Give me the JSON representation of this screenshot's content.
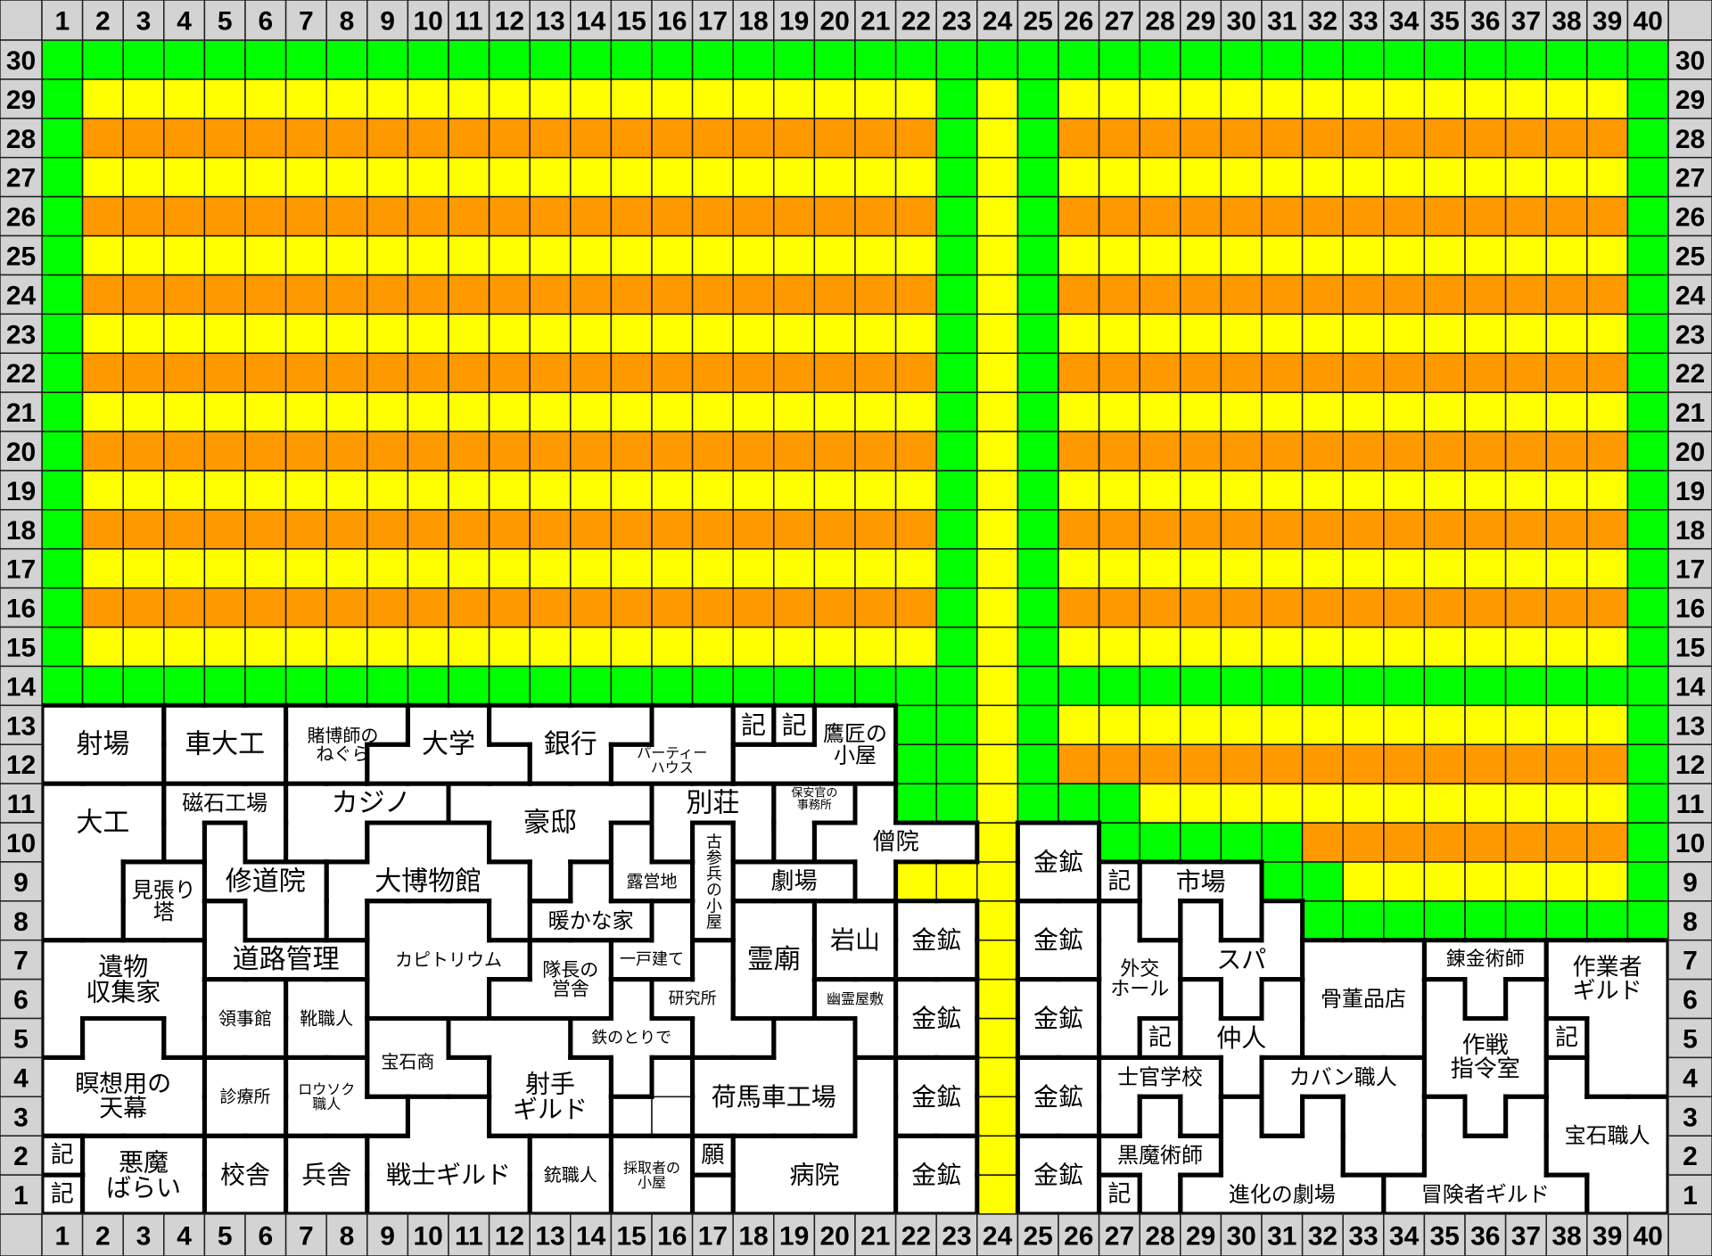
{
  "columns": [
    "1",
    "2",
    "3",
    "4",
    "5",
    "6",
    "7",
    "8",
    "9",
    "10",
    "11",
    "12",
    "13",
    "14",
    "15",
    "16",
    "17",
    "18",
    "19",
    "20",
    "21",
    "22",
    "23",
    "24",
    "25",
    "26",
    "27",
    "28",
    "29",
    "30",
    "31",
    "32",
    "33",
    "34",
    "35",
    "36",
    "37",
    "38",
    "39",
    "40"
  ],
  "rows": [
    "30",
    "29",
    "28",
    "27",
    "26",
    "25",
    "24",
    "23",
    "22",
    "21",
    "20",
    "19",
    "18",
    "17",
    "16",
    "15",
    "14",
    "13",
    "12",
    "11",
    "10",
    "9",
    "8",
    "7",
    "6",
    "5",
    "4",
    "3",
    "2",
    "1"
  ],
  "colors": {
    "green": "#00ff00",
    "yellow": "#ffff00",
    "orange": "#ff9900",
    "header": "#d3d3d3",
    "building": "#ffffff"
  },
  "buildings": [
    {
      "id": "shajo",
      "lines": [
        "射場"
      ],
      "cells": "13:1-3,12:1-3"
    },
    {
      "id": "kurumadaiku",
      "lines": [
        "車大工"
      ],
      "cells": "13:4-6,12:4-6"
    },
    {
      "id": "tobakushi",
      "lines": [
        "賭博師の",
        "ねぐら"
      ],
      "cells": "13:7-9,12:7-8"
    },
    {
      "id": "daigaku",
      "lines": [
        "大学"
      ],
      "cells": "13:10-11,12:9-12"
    },
    {
      "id": "ginko",
      "lines": [
        "銀行"
      ],
      "cells": "13:12-15,12:13-14"
    },
    {
      "id": "party",
      "lines": [
        "パーティー",
        "ハウス"
      ],
      "cells": "13:16-17,12:15-17"
    },
    {
      "id": "ki-a",
      "lines": [
        "記"
      ],
      "cells": "13:18"
    },
    {
      "id": "ki-b",
      "lines": [
        "記"
      ],
      "cells": "13:19"
    },
    {
      "id": "takasho",
      "lines": [
        "鷹匠の",
        "小屋"
      ],
      "cells": "13:20-21,12:18-21"
    },
    {
      "id": "daiku",
      "lines": [
        "大工"
      ],
      "cells": "11:1-3,10:1-3,9:1-2,8:1-2"
    },
    {
      "id": "jishaku",
      "lines": [
        "磁石工場"
      ],
      "cells": "11:4-6,10:4,10:6"
    },
    {
      "id": "casino",
      "lines": [
        "カジノ"
      ],
      "cells": "11:7-10,10:7-8"
    },
    {
      "id": "gotei",
      "lines": [
        "豪邸"
      ],
      "cells": "11:11-15,10:12-14,9:13"
    },
    {
      "id": "besso",
      "lines": [
        "別荘"
      ],
      "cells": "11:16-18,10:16,10:18"
    },
    {
      "id": "hoankan",
      "lines": [
        "保安官の",
        "事務所"
      ],
      "cells": "11:19-20,10:19"
    },
    {
      "id": "soin",
      "lines": [
        "僧院"
      ],
      "cells": "11:21,10:20-23,9:21"
    },
    {
      "id": "mihari",
      "lines": [
        "見張り",
        "塔"
      ],
      "cells": "9:3-4,8:3-4"
    },
    {
      "id": "shudoin",
      "lines": [
        "修道院"
      ],
      "cells": "10:5,9:5-7,8:6-7"
    },
    {
      "id": "daihakubutsukan",
      "lines": [
        "大博物館"
      ],
      "cells": "10:9-11,9:8-12,8:8,8:12"
    },
    {
      "id": "roeichi",
      "lines": [
        "露営地"
      ],
      "cells": "10:15,9:15-16"
    },
    {
      "id": "atatakanaie",
      "lines": [
        "暖かな家"
      ],
      "cells": "9:14,8:13-15"
    },
    {
      "id": "kosanhei",
      "lines": [
        "古参兵の小屋"
      ],
      "cells": "10:17,9:17,8:17"
    },
    {
      "id": "gekijo",
      "lines": [
        "劇場"
      ],
      "cells": "9:18-20"
    },
    {
      "id": "dorokanri",
      "lines": [
        "道路管理"
      ],
      "cells": "8:5,7:5-8"
    },
    {
      "id": "ibutsu",
      "lines": [
        "遺物",
        "収集家"
      ],
      "cells": "7:1-4,6:1-4,5:1,5:4"
    },
    {
      "id": "capitol",
      "lines": [
        "カピトリウム"
      ],
      "cells": "8:9-11,7:9-12,6:9-11"
    },
    {
      "id": "taicho",
      "lines": [
        "隊長の",
        "営舎"
      ],
      "cells": "7:13-14,6:12-14"
    },
    {
      "id": "ikkodate",
      "lines": [
        "一戸建て"
      ],
      "cells": "8:16,7:15-16"
    },
    {
      "id": "kenkyujo",
      "lines": [
        "研究所"
      ],
      "cells": "7:17,6:16-17,5:17-18"
    },
    {
      "id": "reibyo",
      "lines": [
        "霊廟"
      ],
      "cells": "8:18-19,7:18-19,6:18-19"
    },
    {
      "id": "iwayama",
      "lines": [
        "岩山"
      ],
      "cells": "8:20-21,7:20-21"
    },
    {
      "id": "kinko-1",
      "lines": [
        "金鉱"
      ],
      "cells": "8:22-23,7:22-23"
    },
    {
      "id": "yurei",
      "lines": [
        "幽霊屋敷"
      ],
      "cells": "6:20-21,5:21"
    },
    {
      "id": "kinko-2",
      "lines": [
        "金鉱"
      ],
      "cells": "6:22-23,5:22-23"
    },
    {
      "id": "ryojikan",
      "lines": [
        "領事館"
      ],
      "cells": "6:5-6,5:5-6"
    },
    {
      "id": "kutsu",
      "lines": [
        "靴職人"
      ],
      "cells": "6:7-8,5:7-8"
    },
    {
      "id": "hosekisho",
      "lines": [
        "宝石商"
      ],
      "cells": "5:9-10,4:9-11"
    },
    {
      "id": "shashu",
      "lines": [
        "射手",
        "ギルド"
      ],
      "cells": "5:11-13,4:12-14,3:12-14"
    },
    {
      "id": "tetsu",
      "lines": [
        "鉄のとりで"
      ],
      "cells": "6:15,5:14-16,4:15"
    },
    {
      "id": "empty-a",
      "lines": [],
      "cells": "4:16,3:15-16",
      "plain": true
    },
    {
      "id": "nibasha",
      "lines": [
        "荷馬車工場"
      ],
      "cells": "5:19-20,4:17-20,3:17-20"
    },
    {
      "id": "kinko-3",
      "lines": [
        "金鉱"
      ],
      "cells": "4:22-23,3:22-23"
    },
    {
      "id": "byoin",
      "lines": [
        "病院"
      ],
      "cells": "4:21,3:21,2:18-21,1:18-21"
    },
    {
      "id": "meiso",
      "lines": [
        "瞑想用の",
        "天幕"
      ],
      "cells": "5:2-3,4:1-4,3:1-4"
    },
    {
      "id": "shinryojo",
      "lines": [
        "診療所"
      ],
      "cells": "4:5-6,3:5-6"
    },
    {
      "id": "rosoku",
      "lines": [
        "ロウソク",
        "職人"
      ],
      "cells": "4:7-8,3:7-9"
    },
    {
      "id": "senshi",
      "lines": [
        "戦士ギルド"
      ],
      "cells": "3:10-11,2:9-12,1:9-12"
    },
    {
      "id": "ki-c",
      "lines": [
        "記"
      ],
      "cells": "2:1"
    },
    {
      "id": "ki-d",
      "lines": [
        "記"
      ],
      "cells": "1:1"
    },
    {
      "id": "akuma",
      "lines": [
        "悪魔",
        "ばらい"
      ],
      "cells": "2:2-4,1:2-4"
    },
    {
      "id": "kosha",
      "lines": [
        "校舎"
      ],
      "cells": "2:5-6,1:5-6"
    },
    {
      "id": "heisha",
      "lines": [
        "兵舎"
      ],
      "cells": "2:7-8,1:7-8"
    },
    {
      "id": "ju",
      "lines": [
        "銃職人"
      ],
      "cells": "2:13-14,1:13-14"
    },
    {
      "id": "saishu",
      "lines": [
        "採取者の",
        "小屋"
      ],
      "cells": "2:15-16,1:15-16"
    },
    {
      "id": "negai",
      "lines": [
        "願"
      ],
      "cells": "2:17"
    },
    {
      "id": "empty-b",
      "lines": [],
      "cells": "1:17"
    },
    {
      "id": "kinko-4",
      "lines": [
        "金鉱"
      ],
      "cells": "2:22-23,1:22-23"
    },
    {
      "id": "kinko-5",
      "lines": [
        "金鉱"
      ],
      "cells": "10:25-26,9:25-26"
    },
    {
      "id": "kinko-6",
      "lines": [
        "金鉱"
      ],
      "cells": "8:25-26,7:25-26"
    },
    {
      "id": "kinko-7",
      "lines": [
        "金鉱"
      ],
      "cells": "6:25-26,5:25-26"
    },
    {
      "id": "kinko-8",
      "lines": [
        "金鉱"
      ],
      "cells": "4:25-26,3:25-26"
    },
    {
      "id": "kinko-9",
      "lines": [
        "金鉱"
      ],
      "cells": "2:25-26,1:25-26"
    },
    {
      "id": "ki-e",
      "lines": [
        "記"
      ],
      "cells": "9:27"
    },
    {
      "id": "ichiba",
      "lines": [
        "市場"
      ],
      "cells": "9:28-30,8:28,8:30"
    },
    {
      "id": "gaiko",
      "lines": [
        "外交",
        "ホール"
      ],
      "cells": "8:27,7:27-28,6:27-28,5:27"
    },
    {
      "id": "spa",
      "lines": [
        "スパ"
      ],
      "cells": "8:29,8:31,7:29-31,6:30"
    },
    {
      "id": "ki-f",
      "lines": [
        "記"
      ],
      "cells": "5:28"
    },
    {
      "id": "nakodo",
      "lines": [
        "仲人"
      ],
      "cells": "6:29,6:31,5:29-31,4:30"
    },
    {
      "id": "kotto",
      "lines": [
        "骨董品店"
      ],
      "cells": "7:32-34,6:32-34,5:32-34"
    },
    {
      "id": "renkin",
      "lines": [
        "錬金術師"
      ],
      "cells": "7:35-37,6:36"
    },
    {
      "id": "sagyosha",
      "lines": [
        "作業者",
        "ギルド"
      ],
      "cells": "7:38-40,6:38-40,5:39-40,4:39-40"
    },
    {
      "id": "ki-g",
      "lines": [
        "記"
      ],
      "cells": "5:38"
    },
    {
      "id": "sakusen",
      "lines": [
        "作戦",
        "指令室"
      ],
      "cells": "6:35,6:37,5:35-37,4:35-37,3:36"
    },
    {
      "id": "shikan",
      "lines": [
        "士官学校"
      ],
      "cells": "4:27-29,3:27,3:29"
    },
    {
      "id": "kaban",
      "lines": [
        "カバン職人"
      ],
      "cells": "4:31-34,3:31,3:33-34,2:33-34"
    },
    {
      "id": "kuromajutsu",
      "lines": [
        "黒魔術師"
      ],
      "cells": "3:28,2:27-29,1:28"
    },
    {
      "id": "ki-h",
      "lines": [
        "記"
      ],
      "cells": "1:27"
    },
    {
      "id": "shinka",
      "lines": [
        "進化の劇場"
      ],
      "cells": "3:30,3:32,2:30-32,1:29-33"
    },
    {
      "id": "boken",
      "lines": [
        "冒険者ギルド"
      ],
      "cells": "3:35,3:37,2:35-37,1:34-38"
    },
    {
      "id": "hoseki",
      "lines": [
        "宝石職人"
      ],
      "cells": "4:38,3:38-40,2:38-40,1:39-40"
    }
  ]
}
